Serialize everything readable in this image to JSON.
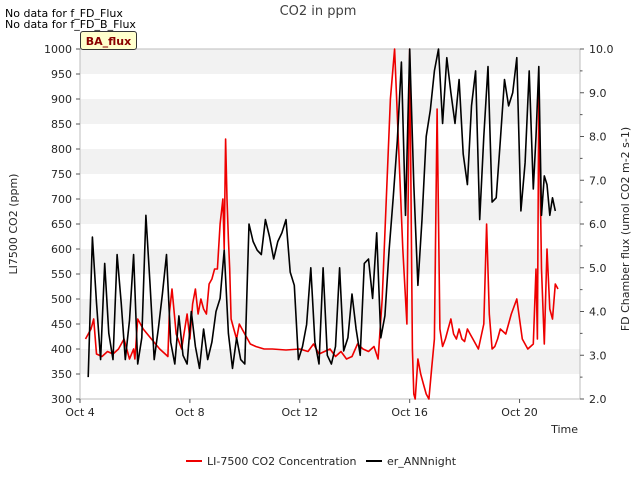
{
  "notes": [
    "No data for f_FD_Flux",
    "No data for f_FD_B_Flux"
  ],
  "badge": "BA_flux",
  "chart_data": {
    "type": "line",
    "title": "CO2 in ppm",
    "xlabel": "Time",
    "ylabel": "LI7500 CO2 (ppm)",
    "y2label": "FD Chamber flux (umol CO2 m-2 s-1)",
    "xlim": [
      4,
      22.2
    ],
    "ylim": [
      300,
      1000
    ],
    "y2lim": [
      2.0,
      10.0
    ],
    "xticks": [
      4,
      8,
      12,
      16,
      20
    ],
    "xtick_labels": [
      "Oct 4",
      "Oct 8",
      "Oct 12",
      "Oct 16",
      "Oct 20"
    ],
    "yticks": [
      300,
      350,
      400,
      450,
      500,
      550,
      600,
      650,
      700,
      750,
      800,
      850,
      900,
      950,
      1000
    ],
    "y2ticks": [
      2.0,
      3.0,
      4.0,
      5.0,
      6.0,
      7.0,
      8.0,
      9.0,
      10.0
    ],
    "y2tick_labels": [
      "2.0",
      "3.0",
      "4.0",
      "5.0",
      "6.0",
      "7.0",
      "8.0",
      "9.0",
      "10.0"
    ],
    "legend_position": "bottom-center",
    "series": [
      {
        "name": "LI-7500 CO2 Concentration",
        "axis": "left",
        "color": "#ee0000",
        "x": [
          4.2,
          4.4,
          4.5,
          4.6,
          4.8,
          5.0,
          5.2,
          5.4,
          5.6,
          5.8,
          5.95,
          6.0,
          6.1,
          6.3,
          6.6,
          6.9,
          7.1,
          7.2,
          7.25,
          7.35,
          7.5,
          7.7,
          7.9,
          8.0,
          8.1,
          8.2,
          8.3,
          8.4,
          8.5,
          8.6,
          8.7,
          8.8,
          8.9,
          9.0,
          9.1,
          9.2,
          9.25,
          9.3,
          9.35,
          9.4,
          9.45,
          9.5,
          9.6,
          9.7,
          9.8,
          10.0,
          10.2,
          10.4,
          10.7,
          11.0,
          11.5,
          12.0,
          12.3,
          12.5,
          12.7,
          12.9,
          13.1,
          13.3,
          13.5,
          13.7,
          13.9,
          14.1,
          14.3,
          14.5,
          14.7,
          14.85,
          15.0,
          15.15,
          15.3,
          15.45,
          15.6,
          15.75,
          15.9,
          16.0,
          16.1,
          16.15,
          16.2,
          16.3,
          16.4,
          16.5,
          16.6,
          16.7,
          16.8,
          16.9,
          17.0,
          17.1,
          17.2,
          17.3,
          17.4,
          17.5,
          17.6,
          17.7,
          17.8,
          17.9,
          18.0,
          18.1,
          18.2,
          18.3,
          18.5,
          18.7,
          18.8,
          18.9,
          19.0,
          19.1,
          19.2,
          19.3,
          19.5,
          19.7,
          19.9,
          20.1,
          20.3,
          20.5,
          20.6,
          20.65,
          20.7,
          20.8,
          20.9,
          21.0,
          21.1,
          21.2,
          21.3,
          21.4
        ],
        "y": [
          420,
          440,
          460,
          390,
          385,
          395,
          390,
          400,
          420,
          380,
          400,
          380,
          460,
          440,
          420,
          400,
          390,
          385,
          470,
          520,
          430,
          400,
          470,
          420,
          490,
          520,
          470,
          500,
          480,
          470,
          530,
          540,
          560,
          560,
          650,
          700,
          600,
          820,
          700,
          620,
          560,
          460,
          440,
          420,
          450,
          430,
          410,
          405,
          400,
          400,
          398,
          400,
          395,
          410,
          390,
          395,
          400,
          385,
          395,
          380,
          385,
          410,
          400,
          395,
          405,
          380,
          500,
          700,
          900,
          1000,
          800,
          600,
          450,
          1000,
          400,
          310,
          300,
          380,
          350,
          330,
          310,
          300,
          360,
          420,
          880,
          440,
          405,
          420,
          440,
          460,
          430,
          420,
          440,
          420,
          415,
          440,
          430,
          420,
          400,
          450,
          650,
          470,
          400,
          405,
          420,
          440,
          430,
          470,
          500,
          420,
          400,
          410,
          560,
          420,
          910,
          560,
          410,
          600,
          480,
          460,
          530,
          520
        ]
      },
      {
        "name": "er_ANNnight",
        "axis": "right",
        "color": "#000000",
        "x": [
          4.3,
          4.45,
          4.6,
          4.75,
          4.9,
          5.05,
          5.2,
          5.35,
          5.5,
          5.65,
          5.8,
          5.95,
          6.1,
          6.25,
          6.4,
          6.55,
          6.7,
          6.85,
          7.0,
          7.15,
          7.3,
          7.45,
          7.6,
          7.75,
          7.9,
          8.05,
          8.2,
          8.35,
          8.5,
          8.65,
          8.8,
          8.95,
          9.1,
          9.25,
          9.4,
          9.55,
          9.7,
          9.85,
          10.0,
          10.15,
          10.3,
          10.45,
          10.6,
          10.75,
          10.9,
          11.05,
          11.2,
          11.35,
          11.5,
          11.65,
          11.8,
          11.95,
          12.1,
          12.25,
          12.4,
          12.55,
          12.7,
          12.85,
          13.0,
          13.15,
          13.3,
          13.45,
          13.6,
          13.75,
          13.9,
          14.05,
          14.2,
          14.35,
          14.5,
          14.65,
          14.8,
          14.95,
          15.1,
          15.25,
          15.4,
          15.55,
          15.7,
          15.85,
          16.0,
          16.15,
          16.3,
          16.45,
          16.6,
          16.75,
          16.9,
          17.05,
          17.2,
          17.35,
          17.5,
          17.65,
          17.8,
          17.95,
          18.1,
          18.25,
          18.4,
          18.55,
          18.7,
          18.85,
          19.0,
          19.15,
          19.3,
          19.45,
          19.6,
          19.75,
          19.9,
          20.05,
          20.2,
          20.35,
          20.5,
          20.6,
          20.7,
          20.8,
          20.9,
          21.0,
          21.1,
          21.2,
          21.3
        ],
        "y": [
          2.5,
          5.7,
          4.2,
          2.9,
          5.1,
          3.5,
          2.9,
          5.3,
          4.2,
          2.9,
          3.8,
          5.3,
          2.8,
          3.4,
          6.2,
          4.6,
          2.9,
          3.6,
          4.4,
          5.3,
          3.3,
          2.8,
          3.9,
          3.0,
          2.8,
          4.0,
          3.2,
          2.7,
          3.6,
          2.9,
          3.3,
          4.0,
          4.3,
          5.4,
          3.5,
          2.7,
          3.4,
          2.9,
          2.8,
          6.0,
          5.6,
          5.4,
          5.3,
          6.1,
          5.7,
          5.2,
          5.6,
          5.8,
          6.1,
          4.9,
          4.6,
          2.9,
          3.2,
          3.7,
          5.0,
          3.3,
          2.8,
          5.0,
          3.0,
          2.8,
          3.2,
          5.0,
          3.1,
          3.4,
          4.4,
          3.6,
          3.0,
          5.1,
          5.2,
          4.3,
          5.8,
          3.4,
          3.9,
          5.4,
          6.6,
          7.9,
          9.7,
          6.2,
          10.0,
          6.9,
          4.6,
          6.1,
          8.0,
          8.6,
          9.5,
          10.0,
          8.3,
          9.8,
          9.0,
          8.3,
          9.3,
          7.6,
          6.9,
          8.7,
          9.5,
          6.1,
          8.0,
          9.6,
          6.5,
          6.6,
          7.9,
          9.3,
          8.7,
          9.0,
          9.8,
          6.3,
          7.4,
          9.5,
          6.8,
          8.0,
          9.6,
          6.2,
          7.1,
          6.9,
          6.2,
          6.6,
          6.3
        ]
      }
    ]
  }
}
